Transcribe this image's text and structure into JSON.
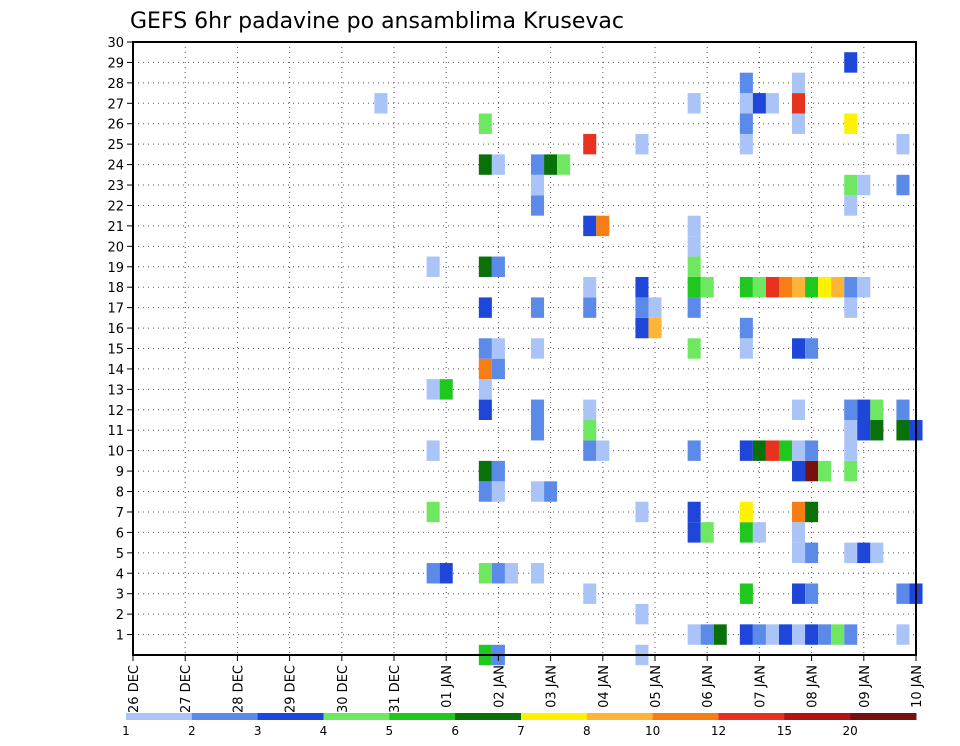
{
  "chart_data": {
    "type": "heatmap",
    "title": "GEFS 6hr padavine po ansamblima Krusevac",
    "x_ticks": [
      "26 DEC",
      "27 DEC",
      "28 DEC",
      "29 DEC",
      "30 DEC",
      "31 DEC",
      "01 JAN",
      "02 JAN",
      "03 JAN",
      "04 JAN",
      "05 JAN",
      "06 JAN",
      "07 JAN",
      "08 JAN",
      "09 JAN",
      "10 JAN"
    ],
    "y_ticks": [
      "1",
      "2",
      "3",
      "4",
      "5",
      "6",
      "7",
      "8",
      "9",
      "10",
      "11",
      "12",
      "13",
      "14",
      "15",
      "16",
      "17",
      "18",
      "19",
      "20",
      "21",
      "22",
      "23",
      "24",
      "25",
      "26",
      "27",
      "28",
      "29",
      "30"
    ],
    "ylim": [
      0,
      30
    ],
    "grid": true,
    "colorbar": {
      "labels": [
        "1",
        "2",
        "3",
        "4",
        "5",
        "6",
        "7",
        "8",
        "10",
        "12",
        "15",
        "20"
      ],
      "colors": [
        "#aac4f7",
        "#5b8ae8",
        "#1e46d8",
        "#6ee860",
        "#1ec81e",
        "#0a700a",
        "#fff200",
        "#ffb437",
        "#f77e14",
        "#e6321e",
        "#b01414",
        "#781010"
      ]
    },
    "cells": [
      {
        "date": "02 JAN",
        "member": 0,
        "color": "#1ec81e"
      },
      {
        "date": "02 JAN",
        "member": 0,
        "color": "#5b8ae8"
      },
      {
        "date": "05 JAN",
        "member": 0,
        "color": "#aac4f7"
      },
      {
        "date": "06 JAN",
        "member": 1,
        "color": "#aac4f7"
      },
      {
        "date": "06 JAN",
        "member": 1,
        "color": "#5b8ae8"
      },
      {
        "date": "06 JAN",
        "member": 1,
        "color": "#0a700a"
      },
      {
        "date": "07 JAN",
        "member": 1,
        "color": "#1e46d8"
      },
      {
        "date": "07 JAN",
        "member": 1,
        "color": "#5b8ae8"
      },
      {
        "date": "07 JAN",
        "member": 1,
        "color": "#aac4f7"
      },
      {
        "date": "07 JAN",
        "member": 1,
        "color": "#1e46d8"
      },
      {
        "date": "08 JAN",
        "member": 1,
        "color": "#aac4f7"
      },
      {
        "date": "08 JAN",
        "member": 1,
        "color": "#1e46d8"
      },
      {
        "date": "08 JAN",
        "member": 1,
        "color": "#5b8ae8"
      },
      {
        "date": "08 JAN",
        "member": 1,
        "color": "#6ee860"
      },
      {
        "date": "09 JAN",
        "member": 1,
        "color": "#5b8ae8"
      },
      {
        "date": "10 JAN",
        "member": 1,
        "color": "#aac4f7"
      },
      {
        "date": "05 JAN",
        "member": 2,
        "color": "#aac4f7"
      },
      {
        "date": "04 JAN",
        "member": 3,
        "color": "#aac4f7"
      },
      {
        "date": "07 JAN",
        "member": 3,
        "color": "#1ec81e"
      },
      {
        "date": "08 JAN",
        "member": 3,
        "color": "#1e46d8"
      },
      {
        "date": "08 JAN",
        "member": 3,
        "color": "#5b8ae8"
      },
      {
        "date": "10 JAN",
        "member": 3,
        "color": "#5b8ae8"
      },
      {
        "date": "10 JAN",
        "member": 3,
        "color": "#1e46d8"
      },
      {
        "date": "01 JAN",
        "member": 4,
        "color": "#5b8ae8"
      },
      {
        "date": "01 JAN",
        "member": 4,
        "color": "#1e46d8"
      },
      {
        "date": "02 JAN",
        "member": 4,
        "color": "#6ee860"
      },
      {
        "date": "02 JAN",
        "member": 4,
        "color": "#5b8ae8"
      },
      {
        "date": "02 JAN",
        "member": 4,
        "color": "#aac4f7"
      },
      {
        "date": "03 JAN",
        "member": 4,
        "color": "#aac4f7"
      },
      {
        "date": "08 JAN",
        "member": 5,
        "color": "#aac4f7"
      },
      {
        "date": "08 JAN",
        "member": 5,
        "color": "#5b8ae8"
      },
      {
        "date": "09 JAN",
        "member": 5,
        "color": "#aac4f7"
      },
      {
        "date": "09 JAN",
        "member": 5,
        "color": "#1e46d8"
      },
      {
        "date": "09 JAN",
        "member": 5,
        "color": "#aac4f7"
      },
      {
        "date": "06 JAN",
        "member": 6,
        "color": "#1e46d8"
      },
      {
        "date": "06 JAN",
        "member": 6,
        "color": "#6ee860"
      },
      {
        "date": "07 JAN",
        "member": 6,
        "color": "#1ec81e"
      },
      {
        "date": "07 JAN",
        "member": 6,
        "color": "#aac4f7"
      },
      {
        "date": "08 JAN",
        "member": 6,
        "color": "#aac4f7"
      },
      {
        "date": "01 JAN",
        "member": 7,
        "color": "#6ee860"
      },
      {
        "date": "05 JAN",
        "member": 7,
        "color": "#aac4f7"
      },
      {
        "date": "06 JAN",
        "member": 7,
        "color": "#1e46d8"
      },
      {
        "date": "07 JAN",
        "member": 7,
        "color": "#fff200"
      },
      {
        "date": "08 JAN",
        "member": 7,
        "color": "#f77e14"
      },
      {
        "date": "08 JAN",
        "member": 7,
        "color": "#0a700a"
      },
      {
        "date": "02 JAN",
        "member": 8,
        "color": "#5b8ae8"
      },
      {
        "date": "02 JAN",
        "member": 8,
        "color": "#aac4f7"
      },
      {
        "date": "03 JAN",
        "member": 8,
        "color": "#aac4f7"
      },
      {
        "date": "03 JAN",
        "member": 8,
        "color": "#5b8ae8"
      },
      {
        "date": "02 JAN",
        "member": 9,
        "color": "#0a700a"
      },
      {
        "date": "02 JAN",
        "member": 9,
        "color": "#5b8ae8"
      },
      {
        "date": "08 JAN",
        "member": 9,
        "color": "#1e46d8"
      },
      {
        "date": "08 JAN",
        "member": 9,
        "color": "#781010"
      },
      {
        "date": "08 JAN",
        "member": 9,
        "color": "#6ee860"
      },
      {
        "date": "09 JAN",
        "member": 9,
        "color": "#6ee860"
      },
      {
        "date": "01 JAN",
        "member": 10,
        "color": "#aac4f7"
      },
      {
        "date": "04 JAN",
        "member": 10,
        "color": "#5b8ae8"
      },
      {
        "date": "04 JAN",
        "member": 10,
        "color": "#aac4f7"
      },
      {
        "date": "06 JAN",
        "member": 10,
        "color": "#5b8ae8"
      },
      {
        "date": "07 JAN",
        "member": 10,
        "color": "#1e46d8"
      },
      {
        "date": "07 JAN",
        "member": 10,
        "color": "#0a700a"
      },
      {
        "date": "07 JAN",
        "member": 10,
        "color": "#e6321e"
      },
      {
        "date": "07 JAN",
        "member": 10,
        "color": "#1ec81e"
      },
      {
        "date": "08 JAN",
        "member": 10,
        "color": "#aac4f7"
      },
      {
        "date": "08 JAN",
        "member": 10,
        "color": "#5b8ae8"
      },
      {
        "date": "09 JAN",
        "member": 10,
        "color": "#aac4f7"
      },
      {
        "date": "03 JAN",
        "member": 11,
        "color": "#5b8ae8"
      },
      {
        "date": "04 JAN",
        "member": 11,
        "color": "#6ee860"
      },
      {
        "date": "09 JAN",
        "member": 11,
        "color": "#aac4f7"
      },
      {
        "date": "09 JAN",
        "member": 11,
        "color": "#1e46d8"
      },
      {
        "date": "09 JAN",
        "member": 11,
        "color": "#0a700a"
      },
      {
        "date": "10 JAN",
        "member": 11,
        "color": "#0a700a"
      },
      {
        "date": "10 JAN",
        "member": 11,
        "color": "#1e46d8"
      },
      {
        "date": "02 JAN",
        "member": 12,
        "color": "#1e46d8"
      },
      {
        "date": "03 JAN",
        "member": 12,
        "color": "#5b8ae8"
      },
      {
        "date": "04 JAN",
        "member": 12,
        "color": "#aac4f7"
      },
      {
        "date": "08 JAN",
        "member": 12,
        "color": "#aac4f7"
      },
      {
        "date": "09 JAN",
        "member": 12,
        "color": "#5b8ae8"
      },
      {
        "date": "09 JAN",
        "member": 12,
        "color": "#1e46d8"
      },
      {
        "date": "09 JAN",
        "member": 12,
        "color": "#6ee860"
      },
      {
        "date": "10 JAN",
        "member": 12,
        "color": "#5b8ae8"
      },
      {
        "date": "01 JAN",
        "member": 13,
        "color": "#aac4f7"
      },
      {
        "date": "01 JAN",
        "member": 13,
        "color": "#1ec81e"
      },
      {
        "date": "02 JAN",
        "member": 13,
        "color": "#aac4f7"
      },
      {
        "date": "02 JAN",
        "member": 14,
        "color": "#f77e14"
      },
      {
        "date": "02 JAN",
        "member": 14,
        "color": "#5b8ae8"
      },
      {
        "date": "02 JAN",
        "member": 15,
        "color": "#5b8ae8"
      },
      {
        "date": "02 JAN",
        "member": 15,
        "color": "#aac4f7"
      },
      {
        "date": "03 JAN",
        "member": 15,
        "color": "#aac4f7"
      },
      {
        "date": "06 JAN",
        "member": 15,
        "color": "#6ee860"
      },
      {
        "date": "07 JAN",
        "member": 15,
        "color": "#aac4f7"
      },
      {
        "date": "08 JAN",
        "member": 15,
        "color": "#1e46d8"
      },
      {
        "date": "08 JAN",
        "member": 15,
        "color": "#5b8ae8"
      },
      {
        "date": "05 JAN",
        "member": 16,
        "color": "#1e46d8"
      },
      {
        "date": "05 JAN",
        "member": 16,
        "color": "#ffb437"
      },
      {
        "date": "07 JAN",
        "member": 16,
        "color": "#5b8ae8"
      },
      {
        "date": "02 JAN",
        "member": 17,
        "color": "#1e46d8"
      },
      {
        "date": "03 JAN",
        "member": 17,
        "color": "#5b8ae8"
      },
      {
        "date": "04 JAN",
        "member": 17,
        "color": "#5b8ae8"
      },
      {
        "date": "05 JAN",
        "member": 17,
        "color": "#5b8ae8"
      },
      {
        "date": "05 JAN",
        "member": 17,
        "color": "#aac4f7"
      },
      {
        "date": "06 JAN",
        "member": 17,
        "color": "#5b8ae8"
      },
      {
        "date": "09 JAN",
        "member": 17,
        "color": "#aac4f7"
      },
      {
        "date": "04 JAN",
        "member": 18,
        "color": "#aac4f7"
      },
      {
        "date": "05 JAN",
        "member": 18,
        "color": "#1e46d8"
      },
      {
        "date": "06 JAN",
        "member": 18,
        "color": "#1ec81e"
      },
      {
        "date": "06 JAN",
        "member": 18,
        "color": "#6ee860"
      },
      {
        "date": "07 JAN",
        "member": 18,
        "color": "#1ec81e"
      },
      {
        "date": "07 JAN",
        "member": 18,
        "color": "#6ee860"
      },
      {
        "date": "07 JAN",
        "member": 18,
        "color": "#e6321e"
      },
      {
        "date": "07 JAN",
        "member": 18,
        "color": "#f77e14"
      },
      {
        "date": "08 JAN",
        "member": 18,
        "color": "#ffb437"
      },
      {
        "date": "08 JAN",
        "member": 18,
        "color": "#1ec81e"
      },
      {
        "date": "08 JAN",
        "member": 18,
        "color": "#fff200"
      },
      {
        "date": "08 JAN",
        "member": 18,
        "color": "#ffb437"
      },
      {
        "date": "09 JAN",
        "member": 18,
        "color": "#5b8ae8"
      },
      {
        "date": "09 JAN",
        "member": 18,
        "color": "#aac4f7"
      },
      {
        "date": "01 JAN",
        "member": 19,
        "color": "#aac4f7"
      },
      {
        "date": "02 JAN",
        "member": 19,
        "color": "#0a700a"
      },
      {
        "date": "02 JAN",
        "member": 19,
        "color": "#5b8ae8"
      },
      {
        "date": "06 JAN",
        "member": 19,
        "color": "#6ee860"
      },
      {
        "date": "06 JAN",
        "member": 20,
        "color": "#aac4f7"
      },
      {
        "date": "06 JAN",
        "member": 21,
        "color": "#aac4f7"
      },
      {
        "date": "04 JAN",
        "member": 21,
        "color": "#1e46d8"
      },
      {
        "date": "04 JAN",
        "member": 21,
        "color": "#f77e14"
      },
      {
        "date": "03 JAN",
        "member": 22,
        "color": "#5b8ae8"
      },
      {
        "date": "09 JAN",
        "member": 22,
        "color": "#aac4f7"
      },
      {
        "date": "03 JAN",
        "member": 23,
        "color": "#aac4f7"
      },
      {
        "date": "09 JAN",
        "member": 23,
        "color": "#6ee860"
      },
      {
        "date": "09 JAN",
        "member": 23,
        "color": "#aac4f7"
      },
      {
        "date": "10 JAN",
        "member": 23,
        "color": "#5b8ae8"
      },
      {
        "date": "02 JAN",
        "member": 24,
        "color": "#0a700a"
      },
      {
        "date": "02 JAN",
        "member": 24,
        "color": "#aac4f7"
      },
      {
        "date": "03 JAN",
        "member": 24,
        "color": "#5b8ae8"
      },
      {
        "date": "03 JAN",
        "member": 24,
        "color": "#0a700a"
      },
      {
        "date": "03 JAN",
        "member": 24,
        "color": "#6ee860"
      },
      {
        "date": "04 JAN",
        "member": 25,
        "color": "#e6321e"
      },
      {
        "date": "05 JAN",
        "member": 25,
        "color": "#aac4f7"
      },
      {
        "date": "07 JAN",
        "member": 25,
        "color": "#aac4f7"
      },
      {
        "date": "10 JAN",
        "member": 25,
        "color": "#aac4f7"
      },
      {
        "date": "02 JAN",
        "member": 26,
        "color": "#6ee860"
      },
      {
        "date": "07 JAN",
        "member": 26,
        "color": "#5b8ae8"
      },
      {
        "date": "08 JAN",
        "member": 26,
        "color": "#aac4f7"
      },
      {
        "date": "09 JAN",
        "member": 26,
        "color": "#fff200"
      },
      {
        "date": "31 DEC",
        "member": 27,
        "color": "#aac4f7"
      },
      {
        "date": "06 JAN",
        "member": 27,
        "color": "#aac4f7"
      },
      {
        "date": "07 JAN",
        "member": 27,
        "color": "#aac4f7"
      },
      {
        "date": "07 JAN",
        "member": 27,
        "color": "#1e46d8"
      },
      {
        "date": "07 JAN",
        "member": 27,
        "color": "#aac4f7"
      },
      {
        "date": "08 JAN",
        "member": 27,
        "color": "#e6321e"
      },
      {
        "date": "07 JAN",
        "member": 28,
        "color": "#5b8ae8"
      },
      {
        "date": "08 JAN",
        "member": 28,
        "color": "#aac4f7"
      },
      {
        "date": "09 JAN",
        "member": 29,
        "color": "#1e46d8"
      }
    ]
  }
}
